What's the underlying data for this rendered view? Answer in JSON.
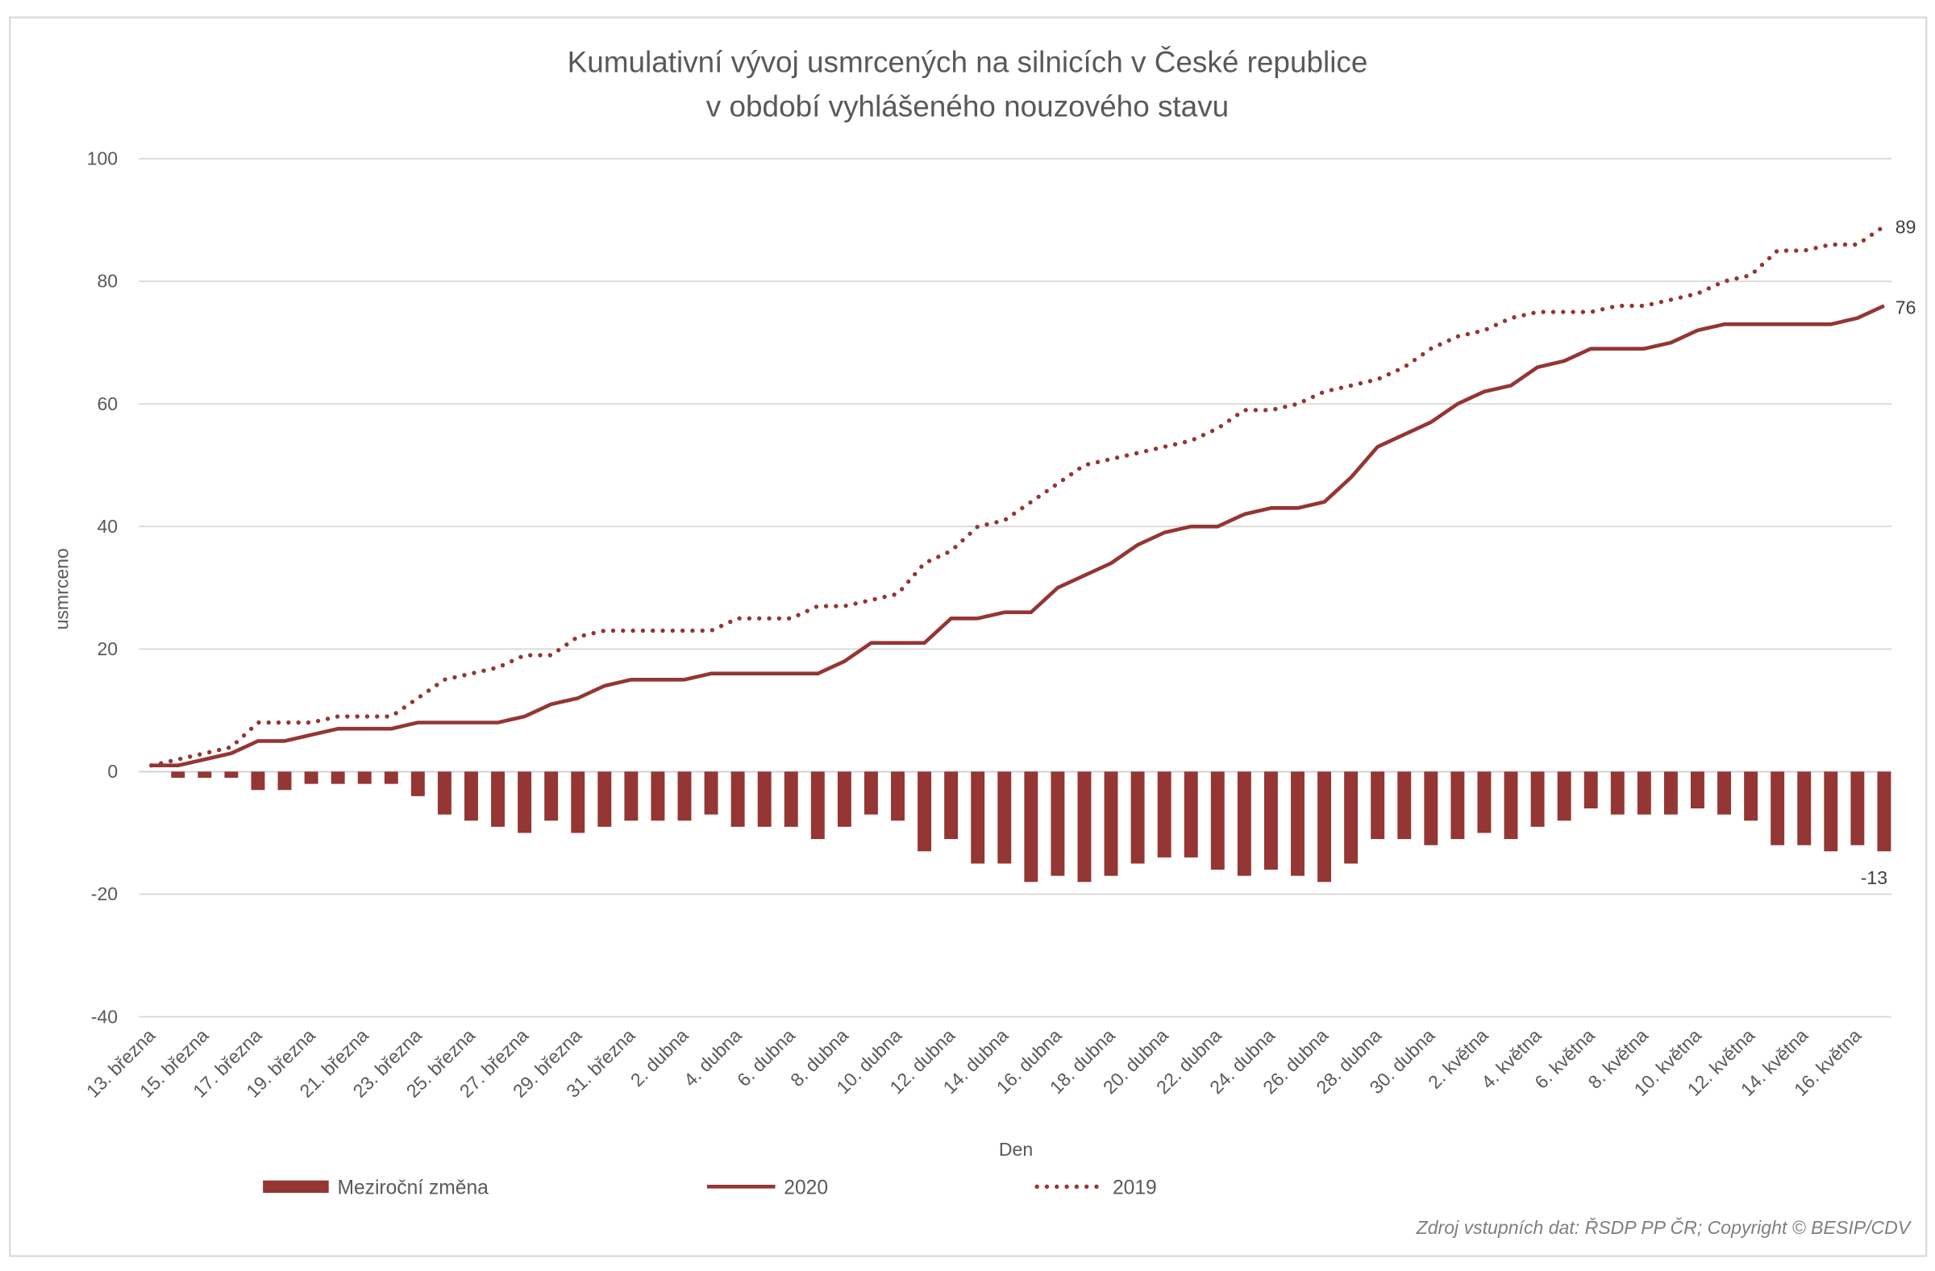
{
  "chart_data": {
    "type": "bar+line",
    "title_line1": "Kumulativní vývoj usmrcených na silnicích v České republice",
    "title_line2": "v období vyhlášeného nouzového stavu",
    "xlabel": "Den",
    "ylabel": "usmrceno",
    "ylim": [
      -40,
      100
    ],
    "yticks": [
      100,
      80,
      60,
      40,
      20,
      0,
      -20,
      -40
    ],
    "grid": true,
    "legend_position": "bottom",
    "colors": {
      "main": "#943634",
      "grid": "#d9d9d9",
      "text": "#595959"
    },
    "x_tick_labels": [
      "13. března",
      "15. března",
      "17. března",
      "19. března",
      "21. března",
      "23. března",
      "25. března",
      "27. března",
      "29. března",
      "31. března",
      "2. dubna",
      "4. dubna",
      "6. dubna",
      "8. dubna",
      "10. dubna",
      "12. dubna",
      "14. dubna",
      "16. dubna",
      "18. dubna",
      "20. dubna",
      "22. dubna",
      "24. dubna",
      "26. dubna",
      "28. dubna",
      "30. dubna",
      "2. května",
      "4. května",
      "6. května",
      "8. května",
      "10. května",
      "12. května",
      "14. května",
      "16. května"
    ],
    "x_start": "13. března",
    "x_end": "17. května",
    "series": [
      {
        "name": "Meziroční změna",
        "type": "bar",
        "values": [
          0,
          -1,
          -1,
          -1,
          -3,
          -3,
          -2,
          -2,
          -2,
          -2,
          -4,
          -7,
          -8,
          -9,
          -10,
          -8,
          -10,
          -9,
          -8,
          -8,
          -8,
          -7,
          -9,
          -9,
          -9,
          -11,
          -9,
          -7,
          -8,
          -13,
          -11,
          -15,
          -15,
          -18,
          -17,
          -18,
          -17,
          -15,
          -14,
          -14,
          -16,
          -17,
          -16,
          -17,
          -18,
          -15,
          -11,
          -11,
          -12,
          -11,
          -10,
          -11,
          -9,
          -8,
          -6,
          -7,
          -7,
          -7,
          -6,
          -7,
          -8,
          -12,
          -12,
          -13,
          -12,
          -13
        ]
      },
      {
        "name": "2020",
        "type": "line",
        "values": [
          1,
          1,
          2,
          3,
          5,
          5,
          6,
          7,
          7,
          7,
          8,
          8,
          8,
          8,
          9,
          11,
          12,
          14,
          15,
          15,
          15,
          16,
          16,
          16,
          16,
          16,
          18,
          21,
          21,
          21,
          25,
          25,
          26,
          26,
          30,
          32,
          34,
          37,
          39,
          40,
          40,
          42,
          43,
          43,
          44,
          48,
          53,
          55,
          57,
          60,
          62,
          63,
          66,
          67,
          69,
          69,
          69,
          70,
          72,
          73,
          73,
          73,
          73,
          73,
          74,
          76
        ]
      },
      {
        "name": "2019",
        "type": "line-dotted",
        "values": [
          1,
          2,
          3,
          4,
          8,
          8,
          8,
          9,
          9,
          9,
          12,
          15,
          16,
          17,
          19,
          19,
          22,
          23,
          23,
          23,
          23,
          23,
          25,
          25,
          25,
          27,
          27,
          28,
          29,
          34,
          36,
          40,
          41,
          44,
          47,
          50,
          51,
          52,
          53,
          54,
          56,
          59,
          59,
          60,
          62,
          63,
          64,
          66,
          69,
          71,
          72,
          74,
          75,
          75,
          75,
          76,
          76,
          77,
          78,
          80,
          81,
          85,
          85,
          86,
          86,
          89
        ]
      }
    ],
    "data_labels": {
      "2019_last": "89",
      "2020_last": "76",
      "bar_last": "-13"
    },
    "source": "Zdroj vstupních dat: ŘSDP PP ČR; Copyright © BESIP/CDV"
  }
}
